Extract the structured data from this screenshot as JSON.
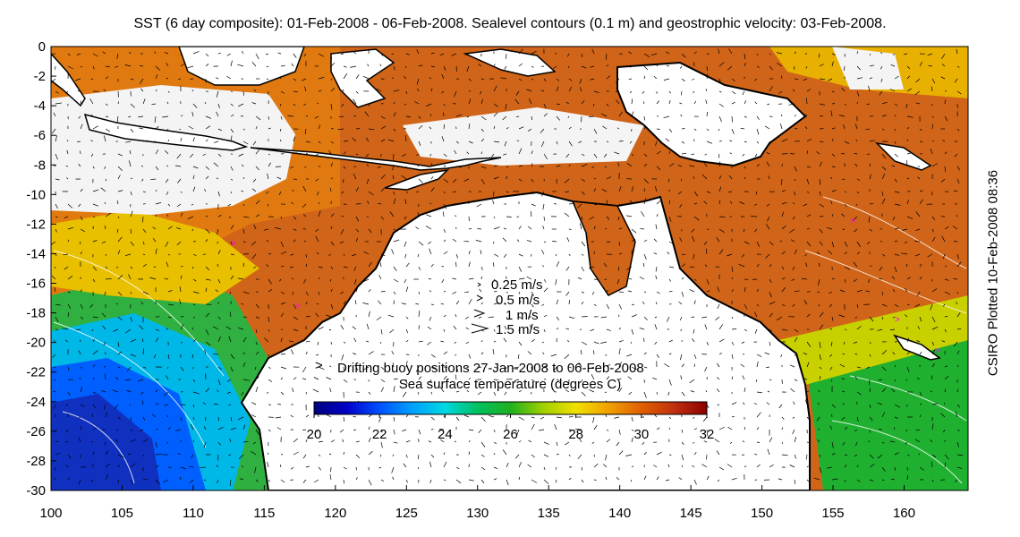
{
  "title": "SST (6 day composite): 01-Feb-2008 - 06-Feb-2008. Sealevel contours (0.1 m) and geostrophic velocity: 03-Feb-2008.",
  "credit": "CSIRO Plotted 10-Feb-2008 08:36",
  "axes": {
    "lon_range": [
      100,
      164.5
    ],
    "lat_range": [
      -30,
      0
    ],
    "x_ticks": [
      "100",
      "105",
      "110",
      "115",
      "120",
      "125",
      "130",
      "135",
      "140",
      "145",
      "150",
      "155",
      "160"
    ],
    "y_ticks": [
      "0",
      "-2",
      "-4",
      "-6",
      "-8",
      "-10",
      "-12",
      "-14",
      "-16",
      "-18",
      "-20",
      "-22",
      "-24",
      "-26",
      "-28",
      "-30"
    ]
  },
  "velocity_legend": [
    "0.25 m/s",
    "0.5 m/s",
    "1 m/s",
    "1.5 m/s"
  ],
  "buoy_legend": {
    "marker": ">",
    "label": "Drifting buoy positions 27-Jan-2008 to 06-Feb-2008",
    "color": "#ff00ff"
  },
  "colorbar": {
    "label": "Sea surface temperature (degrees C)",
    "ticks": [
      "20",
      "22",
      "24",
      "26",
      "28",
      "30",
      "32"
    ],
    "range": [
      20,
      32
    ],
    "colors": [
      "#00007f",
      "#0000c8",
      "#0050ff",
      "#00a0ff",
      "#00d8e0",
      "#00c060",
      "#20b020",
      "#a0d000",
      "#f0e000",
      "#f0a000",
      "#e06000",
      "#c03010",
      "#8b0000"
    ]
  },
  "colors": {
    "land": "#ffffff",
    "coast": "#000000",
    "contour": "#ffffff",
    "arrow": "#000000"
  }
}
